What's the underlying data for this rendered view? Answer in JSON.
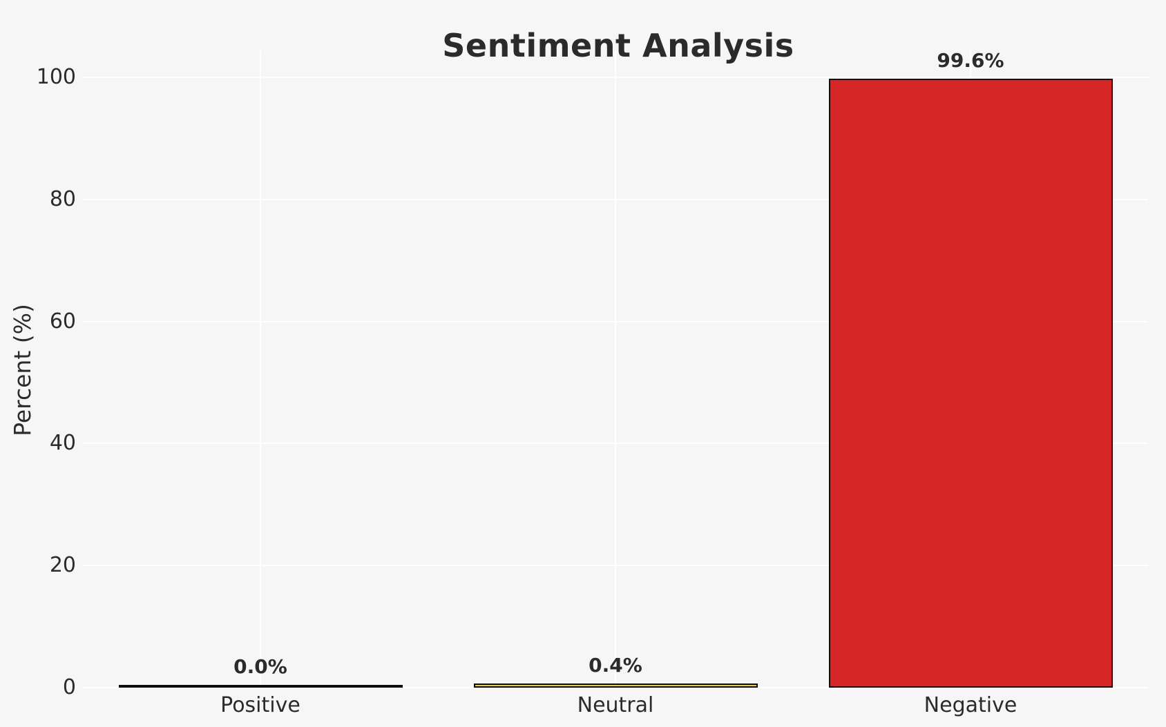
{
  "title": "Sentiment Analysis",
  "colors": {
    "background": "#f6f6f7",
    "gridline": "#ffffff",
    "bar_edge": "#0d0d0d",
    "text": "#2b2b2b"
  },
  "chart_data": {
    "type": "bar",
    "title": "Sentiment Analysis",
    "categories": [
      "Positive",
      "Neutral",
      "Negative"
    ],
    "values": [
      0.0,
      0.4,
      99.6
    ],
    "value_labels": [
      "0.0%",
      "0.4%",
      "99.6%"
    ],
    "bar_colors": [
      "none",
      "#e8cf3e",
      "#d62728"
    ],
    "xlabel": "",
    "ylabel": "Percent (%)",
    "yticks": [
      0,
      20,
      40,
      60,
      80,
      100
    ],
    "ytick_labels": [
      "0",
      "20",
      "40",
      "60",
      "80",
      "100"
    ],
    "ylim": [
      0,
      104.4
    ],
    "grid": true,
    "legend_position": "none",
    "bar_width_fraction": 0.8
  }
}
